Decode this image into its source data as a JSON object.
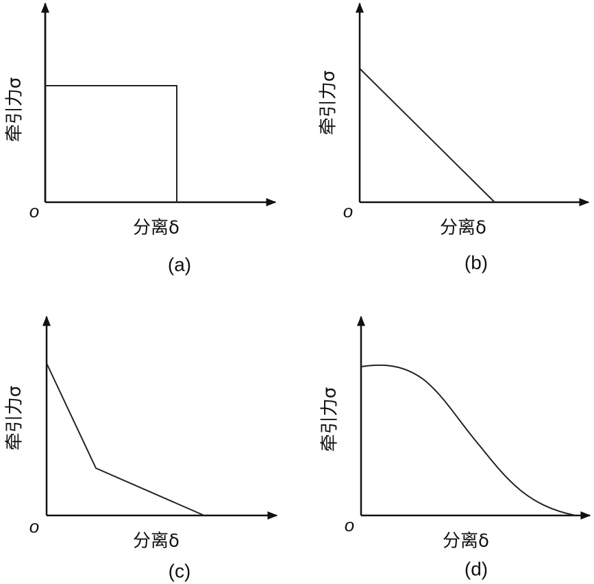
{
  "panels": [
    {
      "caption": "(a)",
      "y_label": "牵引力σ",
      "x_label": "分离δ",
      "origin": "o"
    },
    {
      "caption": "(b)",
      "y_label": "牵引力σ",
      "x_label": "分离δ",
      "origin": "o"
    },
    {
      "caption": "(c)",
      "y_label": "牵引力σ",
      "x_label": "分离δ",
      "origin": "o"
    },
    {
      "caption": "(d)",
      "y_label": "牵引力σ",
      "x_label": "分离δ",
      "origin": "o"
    }
  ]
}
